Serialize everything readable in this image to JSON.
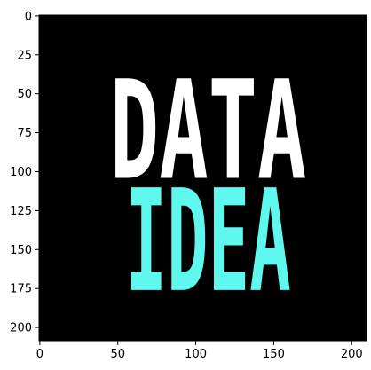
{
  "chart_data": {
    "type": "image",
    "background": "#000000",
    "texts": [
      {
        "text": "DATA",
        "color": "#ffffff"
      },
      {
        "text": "IDEA",
        "color": "#5ff8ef"
      }
    ],
    "xlim": [
      -0.5,
      209.5
    ],
    "ylim": [
      208.5,
      -0.5
    ],
    "xticks": [
      0,
      50,
      100,
      150,
      200
    ],
    "yticks": [
      0,
      25,
      50,
      75,
      100,
      125,
      150,
      175,
      200
    ]
  }
}
